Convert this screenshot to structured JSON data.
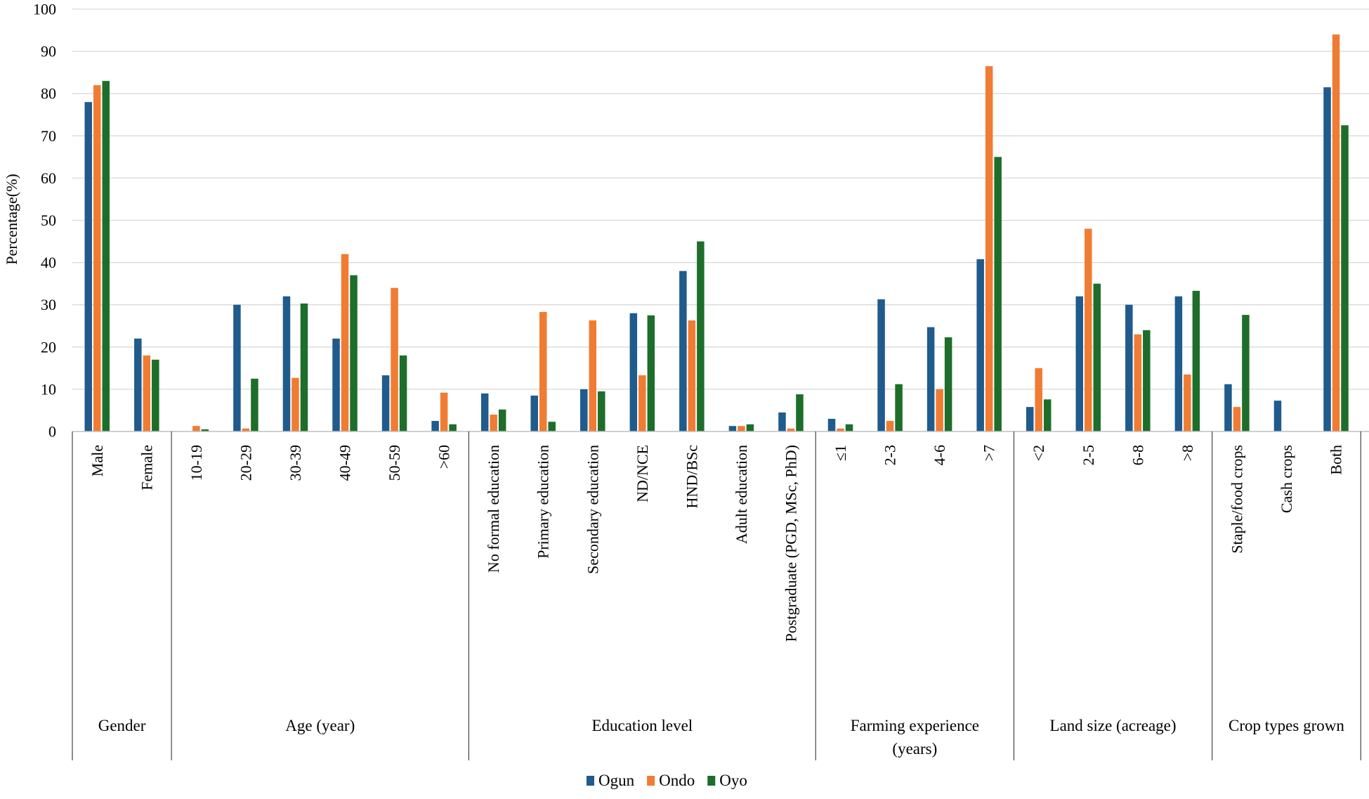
{
  "chart_data": {
    "type": "bar",
    "title": "",
    "xlabel": "",
    "ylabel": "Percentage(%)",
    "ylim": [
      0,
      100
    ],
    "yticks": [
      0,
      10,
      20,
      30,
      40,
      50,
      60,
      70,
      80,
      90,
      100
    ],
    "grid": true,
    "legend_position": "bottom",
    "series": [
      {
        "name": "Ogun",
        "color": "#1f5b8c"
      },
      {
        "name": "Ondo",
        "color": "#f07c33"
      },
      {
        "name": "Oyo",
        "color": "#1d6e2a"
      }
    ],
    "groups": [
      {
        "label": "Gender",
        "categories": [
          {
            "label": "Male",
            "values": [
              78,
              82,
              83
            ]
          },
          {
            "label": "Female",
            "values": [
              22,
              18,
              17
            ]
          }
        ]
      },
      {
        "label": "Age (year)",
        "categories": [
          {
            "label": "10-19",
            "values": [
              0,
              1.3,
              0.5
            ]
          },
          {
            "label": "20-29",
            "values": [
              30,
              0.7,
              12.5
            ]
          },
          {
            "label": "30-39",
            "values": [
              32,
              12.7,
              30.3
            ]
          },
          {
            "label": "40-49",
            "values": [
              22,
              42,
              37
            ]
          },
          {
            "label": "50-59",
            "values": [
              13.3,
              34,
              18
            ]
          },
          {
            "label": ">60",
            "values": [
              2.5,
              9.2,
              1.7
            ]
          }
        ]
      },
      {
        "label": "Education level",
        "categories": [
          {
            "label": "No formal education",
            "values": [
              9,
              4,
              5.2
            ]
          },
          {
            "label": "Primary education",
            "values": [
              8.5,
              28.3,
              2.3
            ]
          },
          {
            "label": "Secondary education",
            "values": [
              10,
              26.3,
              9.5
            ]
          },
          {
            "label": "ND/NCE",
            "values": [
              28,
              13.3,
              27.5
            ]
          },
          {
            "label": "HND/BSc",
            "values": [
              38,
              26.3,
              45
            ]
          },
          {
            "label": "Adult education",
            "values": [
              1.3,
              1.3,
              1.7
            ]
          },
          {
            "label": "Postgraduate (PGD, MSc, PhD)",
            "values": [
              4.5,
              0.7,
              8.8
            ]
          }
        ]
      },
      {
        "label": "Farming experience (years)",
        "label_lines": [
          "Farming experience",
          "(years)"
        ],
        "categories": [
          {
            "label": "≤1",
            "values": [
              3,
              0.7,
              1.7
            ]
          },
          {
            "label": "2-3",
            "values": [
              31.3,
              2.5,
              11.2
            ]
          },
          {
            "label": "4-6",
            "values": [
              24.7,
              10,
              22.3
            ]
          },
          {
            "label": ">7",
            "values": [
              40.8,
              86.5,
              65
            ]
          }
        ]
      },
      {
        "label": "Land size (acreage)",
        "categories": [
          {
            "label": "<2",
            "values": [
              5.8,
              15,
              7.6
            ]
          },
          {
            "label": "2-5",
            "values": [
              32,
              48,
              35
            ]
          },
          {
            "label": "6-8",
            "values": [
              30,
              23,
              24
            ]
          },
          {
            "label": ">8",
            "values": [
              32,
              13.5,
              33.3
            ]
          }
        ]
      },
      {
        "label": "Crop types grown",
        "categories": [
          {
            "label": "Staple/food crops",
            "values": [
              11.2,
              5.8,
              27.6
            ]
          },
          {
            "label": "Cash crops",
            "values": [
              7.3,
              0,
              0
            ]
          },
          {
            "label": "Both",
            "values": [
              81.5,
              94,
              72.5
            ]
          }
        ]
      }
    ]
  }
}
